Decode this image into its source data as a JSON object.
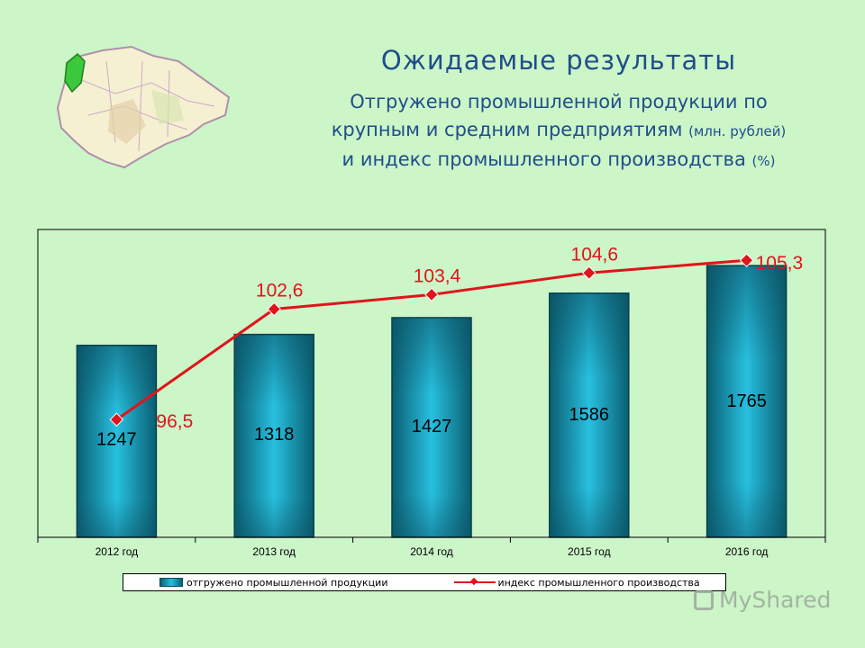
{
  "header": {
    "title": "Ожидаемые результаты",
    "subtitle_line1": "Отгружено промышленной продукции по",
    "subtitle_line2_main": "крупным и средним предприятиям",
    "subtitle_line2_unit": "(млн. рублей)",
    "subtitle_line3_main": "и индекс промышленного производства",
    "subtitle_line3_unit": "(%)"
  },
  "colors": {
    "background": "#ccf5c8",
    "title_text": "#1f4e8a",
    "bar_dark": "#0a5f72",
    "bar_light": "#27c0e0",
    "line": "#e0141a"
  },
  "chart_data": {
    "type": "bar",
    "categories": [
      "2012 год",
      "2013 год",
      "2014 год",
      "2015 год",
      "2016 год"
    ],
    "series": [
      {
        "name": "отгружено промышленной продукции",
        "type": "bar",
        "values": [
          1247,
          1318,
          1427,
          1586,
          1765
        ],
        "labels": [
          "1247",
          "1318",
          "1427",
          "1586",
          "1765"
        ]
      },
      {
        "name": "индекс промышленного производства",
        "type": "line",
        "values": [
          96.5,
          102.6,
          103.4,
          104.6,
          105.3
        ],
        "labels": [
          "96,5",
          "102,6",
          "103,4",
          "104,6",
          "105,3"
        ]
      }
    ],
    "bar_axis_range": [
      0,
      2000
    ],
    "line_axis_range": [
      90,
      107
    ],
    "legend_position": "bottom",
    "grid": false
  },
  "watermark": "MyShared"
}
